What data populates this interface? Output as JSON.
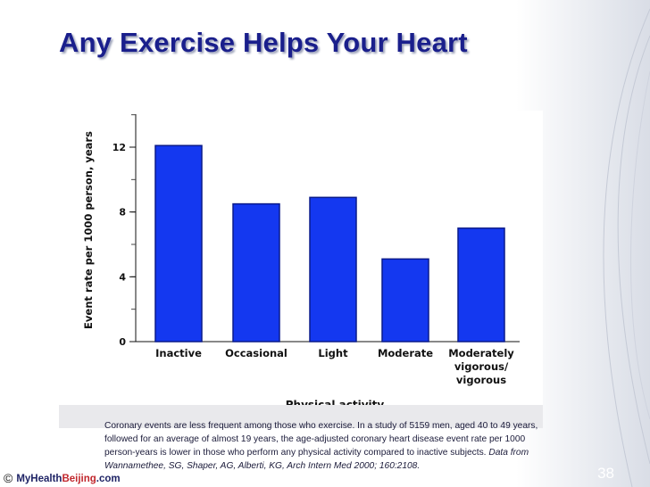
{
  "slide": {
    "title": "Any Exercise Helps Your Heart",
    "page_number": "38"
  },
  "caption": {
    "text": "Coronary events are less frequent among those who exercise. In a study of 5159 men, aged 40 to 49 years, followed for an average of almost 19 years, the age-adjusted coronary heart disease event rate per 1000 person-years is lower in those who perform any physical activity compared to inactive subjects.",
    "source": "Data from Wannamethee, SG, Shaper, AG, Alberti, KG, Arch Intern Med 2000; 160:2108."
  },
  "footer": {
    "copyright_symbol": "©",
    "brand_pre": "MyHealth",
    "brand_mid": "Beijing",
    "brand_post": ".com"
  },
  "colors": {
    "bar": "#1438f0",
    "bar_edge": "#0a1a8a",
    "title": "#1a1f8c"
  },
  "chart_data": {
    "type": "bar",
    "title": "",
    "xlabel": "Physical activity",
    "ylabel": "Event rate per 1000 person, years",
    "categories": [
      [
        "Inactive"
      ],
      [
        "Occasional"
      ],
      [
        "Light"
      ],
      [
        "Moderate"
      ],
      [
        "Moderately",
        "vigorous/",
        "vigorous"
      ]
    ],
    "values": [
      12.1,
      8.5,
      8.9,
      5.1,
      7.0
    ],
    "yticks": [
      0,
      4,
      8,
      12
    ],
    "ylim": [
      0,
      14
    ],
    "grid": false
  }
}
